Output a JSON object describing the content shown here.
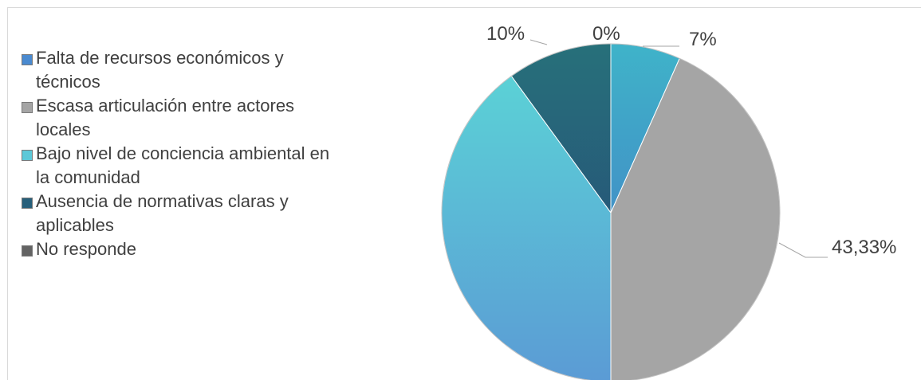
{
  "chart_data": {
    "type": "pie",
    "categories": [
      "Falta de recursos económicos y técnicos",
      "Escasa articulación entre actores locales",
      "Bajo nivel de conciencia ambiental en la comunidad",
      "Ausencia de normativas claras y aplicables",
      "No responde"
    ],
    "values": [
      6.67,
      43.33,
      40.0,
      10.0,
      0.0
    ],
    "data_labels": [
      "7%",
      "43,33%",
      "",
      "10%",
      "0%"
    ],
    "legend_position": "left",
    "colors": {
      "slice_gradients": [
        [
          "#3fb3c9",
          "#4472c4"
        ],
        [
          "#a5a5a5",
          "#a5a5a5"
        ],
        [
          "#5bd7d6",
          "#5b9bd5"
        ],
        [
          "#27707a",
          "#264478"
        ],
        [
          "#636363",
          "#636363"
        ]
      ],
      "swatches": [
        "#4a8ad0",
        "#a5a5a5",
        "#5cc8d8",
        "#275f7a",
        "#636363"
      ],
      "slice_border": "#ffffff",
      "leader_line": "#a6a6a6",
      "label_text": "#404040"
    }
  }
}
